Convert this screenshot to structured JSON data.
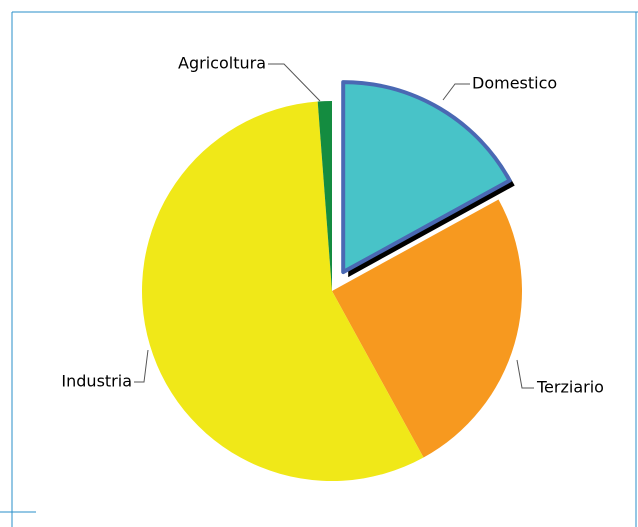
{
  "chart_data": {
    "type": "pie",
    "categories": [
      "Domestico",
      "Terziario",
      "Industria",
      "Agricoltura"
    ],
    "values": [
      17,
      25,
      56.8,
      1.2
    ],
    "colors": [
      "#48c3c8",
      "#f7991f",
      "#f0e818",
      "#148c40"
    ],
    "explode": [
      true,
      false,
      false,
      false
    ]
  }
}
